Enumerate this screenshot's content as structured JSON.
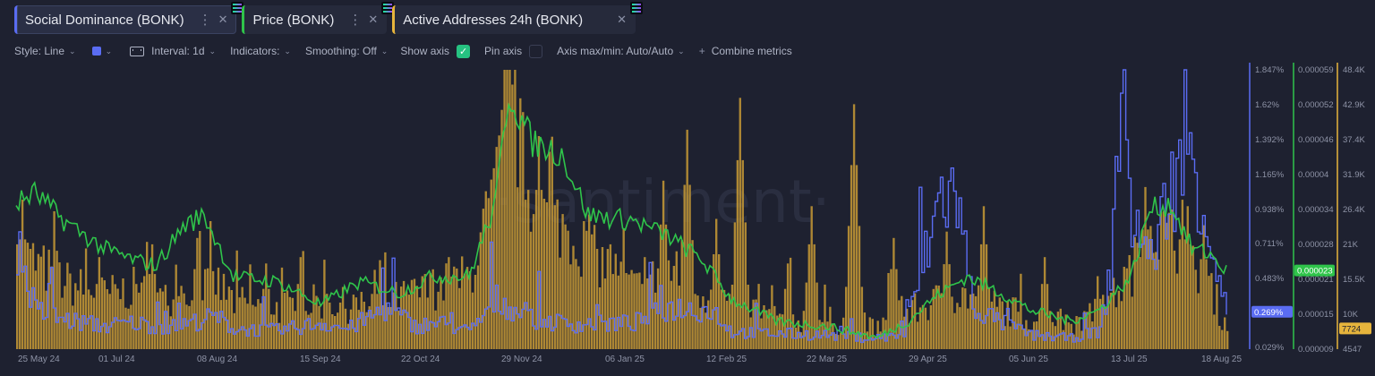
{
  "tabs": [
    {
      "label": "Social Dominance (BONK)",
      "color": "#5a6cf2"
    },
    {
      "label": "Price (BONK)",
      "color": "#2fc44a"
    },
    {
      "label": "Active Addresses 24h (BONK)",
      "color": "#e6b43c"
    }
  ],
  "toolbar": {
    "style": "Style: Line",
    "interval": "Interval: 1d",
    "indicators": "Indicators:",
    "smoothing": "Smoothing: Off",
    "show_axis": "Show axis",
    "pin_axis": "Pin axis",
    "axis_maxmin": "Axis max/min: Auto/Auto",
    "combine": "Combine metrics"
  },
  "watermark": "·santiment·",
  "chart_data": {
    "type": "line",
    "x_labels": [
      "25 May 24",
      "01 Jul 24",
      "08 Aug 24",
      "15 Sep 24",
      "22 Oct 24",
      "29 Nov 24",
      "06 Jan 25",
      "12 Feb 25",
      "22 Mar 25",
      "29 Apr 25",
      "05 Jun 25",
      "13 Jul 25",
      "18 Aug 25"
    ],
    "x_range": [
      "2024-05-18",
      "2025-08-18"
    ],
    "series": [
      {
        "name": "Social Dominance (BONK)",
        "unit": "%",
        "color": "#5a6cf2",
        "axis_ticks": [
          "1.847%",
          "1.62%",
          "1.392%",
          "1.165%",
          "0.938%",
          "0.711%",
          "0.483%",
          "0.029%"
        ],
        "ylim": [
          0.029,
          1.847
        ],
        "current_label": "0.269%",
        "current": 0.269,
        "points": [
          [
            "2024-05-18",
            0.71
          ],
          [
            "2024-05-25",
            0.28
          ],
          [
            "2024-06-05",
            0.22
          ],
          [
            "2024-06-20",
            0.18
          ],
          [
            "2024-07-01",
            0.2
          ],
          [
            "2024-07-15",
            0.17
          ],
          [
            "2024-08-01",
            0.24
          ],
          [
            "2024-08-08",
            0.16
          ],
          [
            "2024-08-25",
            0.15
          ],
          [
            "2024-09-10",
            0.2
          ],
          [
            "2024-09-20",
            0.16
          ],
          [
            "2024-10-05",
            0.3
          ],
          [
            "2024-10-15",
            0.18
          ],
          [
            "2024-10-25",
            0.2
          ],
          [
            "2024-11-05",
            0.14
          ],
          [
            "2024-11-15",
            0.35
          ],
          [
            "2024-11-29",
            0.22
          ],
          [
            "2024-12-15",
            0.19
          ],
          [
            "2025-01-06",
            0.2
          ],
          [
            "2025-01-20",
            0.3
          ],
          [
            "2025-02-05",
            0.28
          ],
          [
            "2025-02-12",
            0.14
          ],
          [
            "2025-03-01",
            0.13
          ],
          [
            "2025-03-22",
            0.12
          ],
          [
            "2025-04-05",
            0.1
          ],
          [
            "2025-04-18",
            0.12
          ],
          [
            "2025-04-27",
            0.7
          ],
          [
            "2025-05-02",
            1.05
          ],
          [
            "2025-05-08",
            1.02
          ],
          [
            "2025-05-14",
            0.3
          ],
          [
            "2025-05-25",
            0.2
          ],
          [
            "2025-06-05",
            0.12
          ],
          [
            "2025-06-20",
            0.1
          ],
          [
            "2025-07-01",
            0.15
          ],
          [
            "2025-07-05",
            0.55
          ],
          [
            "2025-07-09",
            1.8
          ],
          [
            "2025-07-13",
            0.9
          ],
          [
            "2025-07-20",
            0.6
          ],
          [
            "2025-07-28",
            1.1
          ],
          [
            "2025-08-04",
            1.35
          ],
          [
            "2025-08-10",
            0.9
          ],
          [
            "2025-08-15",
            0.45
          ],
          [
            "2025-08-18",
            0.27
          ]
        ]
      },
      {
        "name": "Price (BONK)",
        "unit": "USD",
        "color": "#2fc44a",
        "axis_ticks": [
          "0.000059",
          "0.000052",
          "0.000046",
          "0.00004",
          "0.000034",
          "0.000028",
          "0.000021",
          "0.000015",
          "0.000009"
        ],
        "ylim": [
          9e-06,
          5.9e-05
        ],
        "current_label": "0.000023",
        "current": 2.3e-05,
        "points": [
          [
            "2024-05-18",
            3.5e-05
          ],
          [
            "2024-05-25",
            3.7e-05
          ],
          [
            "2024-06-05",
            3.2e-05
          ],
          [
            "2024-06-20",
            2.7e-05
          ],
          [
            "2024-07-01",
            2.5e-05
          ],
          [
            "2024-07-10",
            2.4e-05
          ],
          [
            "2024-07-20",
            3.1e-05
          ],
          [
            "2024-07-28",
            3.3e-05
          ],
          [
            "2024-08-08",
            2.2e-05
          ],
          [
            "2024-08-25",
            2.1e-05
          ],
          [
            "2024-09-10",
            1.7e-05
          ],
          [
            "2024-09-25",
            2.1e-05
          ],
          [
            "2024-10-10",
            1.9e-05
          ],
          [
            "2024-10-22",
            2.2e-05
          ],
          [
            "2024-11-05",
            2.2e-05
          ],
          [
            "2024-11-15",
            3.5e-05
          ],
          [
            "2024-11-20",
            5.5e-05
          ],
          [
            "2024-11-29",
            4.6e-05
          ],
          [
            "2024-12-10",
            4.4e-05
          ],
          [
            "2024-12-20",
            3.3e-05
          ],
          [
            "2025-01-06",
            3.2e-05
          ],
          [
            "2025-01-20",
            2.9e-05
          ],
          [
            "2025-02-01",
            2.5e-05
          ],
          [
            "2025-02-12",
            1.8e-05
          ],
          [
            "2025-03-01",
            1.4e-05
          ],
          [
            "2025-03-22",
            1.3e-05
          ],
          [
            "2025-04-08",
            1.1e-05
          ],
          [
            "2025-04-20",
            1.4e-05
          ],
          [
            "2025-04-29",
            1.8e-05
          ],
          [
            "2025-05-12",
            2.2e-05
          ],
          [
            "2025-05-25",
            1.9e-05
          ],
          [
            "2025-06-05",
            1.6e-05
          ],
          [
            "2025-06-20",
            1.4e-05
          ],
          [
            "2025-07-01",
            1.6e-05
          ],
          [
            "2025-07-13",
            2.2e-05
          ],
          [
            "2025-07-20",
            3.4e-05
          ],
          [
            "2025-07-28",
            3.5e-05
          ],
          [
            "2025-08-05",
            2.7e-05
          ],
          [
            "2025-08-12",
            2.6e-05
          ],
          [
            "2025-08-18",
            2.3e-05
          ]
        ]
      },
      {
        "name": "Active Addresses 24h (BONK)",
        "unit": "addresses",
        "type": "bar",
        "color": "#e6b43c",
        "axis_ticks": [
          "48.4K",
          "42.9K",
          "37.4K",
          "31.9K",
          "26.4K",
          "21K",
          "15.5K",
          "10K",
          "4547"
        ],
        "ylim": [
          4547,
          48400
        ],
        "current_label": "7724",
        "current": 7724,
        "points": [
          [
            "2024-05-18",
            20000
          ],
          [
            "2024-05-25",
            18000
          ],
          [
            "2024-06-05",
            15000
          ],
          [
            "2024-06-20",
            13000
          ],
          [
            "2024-07-01",
            14000
          ],
          [
            "2024-07-15",
            12000
          ],
          [
            "2024-08-01",
            15000
          ],
          [
            "2024-08-08",
            12000
          ],
          [
            "2024-08-25",
            11000
          ],
          [
            "2024-09-10",
            12000
          ],
          [
            "2024-09-25",
            11000
          ],
          [
            "2024-10-10",
            12500
          ],
          [
            "2024-10-22",
            14000
          ],
          [
            "2024-11-05",
            16000
          ],
          [
            "2024-11-15",
            30000
          ],
          [
            "2024-11-20",
            44000
          ],
          [
            "2024-11-29",
            26000
          ],
          [
            "2024-12-10",
            24000
          ],
          [
            "2024-12-20",
            20000
          ],
          [
            "2025-01-06",
            14000
          ],
          [
            "2025-01-20",
            17000
          ],
          [
            "2025-02-01",
            13000
          ],
          [
            "2025-02-12",
            12000
          ],
          [
            "2025-03-01",
            9500
          ],
          [
            "2025-03-22",
            9000
          ],
          [
            "2025-04-08",
            8000
          ],
          [
            "2025-04-29",
            12000
          ],
          [
            "2025-05-12",
            13000
          ],
          [
            "2025-05-25",
            11000
          ],
          [
            "2025-06-05",
            9500
          ],
          [
            "2025-06-20",
            9000
          ],
          [
            "2025-07-01",
            10000
          ],
          [
            "2025-07-13",
            17000
          ],
          [
            "2025-07-20",
            24000
          ],
          [
            "2025-07-28",
            22000
          ],
          [
            "2025-08-05",
            17000
          ],
          [
            "2025-08-12",
            14000
          ],
          [
            "2025-08-18",
            7724
          ]
        ],
        "spikes": [
          [
            "2024-05-20",
            28000
          ],
          [
            "2024-06-02",
            20000
          ],
          [
            "2024-06-18",
            19000
          ],
          [
            "2024-07-08",
            21000
          ],
          [
            "2024-07-25",
            22000
          ],
          [
            "2024-08-20",
            18000
          ],
          [
            "2024-09-02",
            19000
          ],
          [
            "2024-09-30",
            17000
          ],
          [
            "2024-10-18",
            16000
          ],
          [
            "2024-10-28",
            19000
          ],
          [
            "2024-11-25",
            36000
          ],
          [
            "2024-12-01",
            38000
          ],
          [
            "2024-12-28",
            21000
          ],
          [
            "2025-01-10",
            19000
          ],
          [
            "2025-01-17",
            31000
          ],
          [
            "2025-01-26",
            39000
          ],
          [
            "2025-02-06",
            25000
          ],
          [
            "2025-02-15",
            44000
          ],
          [
            "2025-03-05",
            18000
          ],
          [
            "2025-03-14",
            27000
          ],
          [
            "2025-03-30",
            43000
          ],
          [
            "2025-04-14",
            22000
          ],
          [
            "2025-05-04",
            23000
          ],
          [
            "2025-05-18",
            20000
          ],
          [
            "2025-06-10",
            19000
          ],
          [
            "2025-06-30",
            16000
          ],
          [
            "2025-07-18",
            30000
          ],
          [
            "2025-08-01",
            28000
          ],
          [
            "2025-08-09",
            24000
          ]
        ]
      }
    ],
    "grid": false,
    "legend": "top-tabs"
  }
}
